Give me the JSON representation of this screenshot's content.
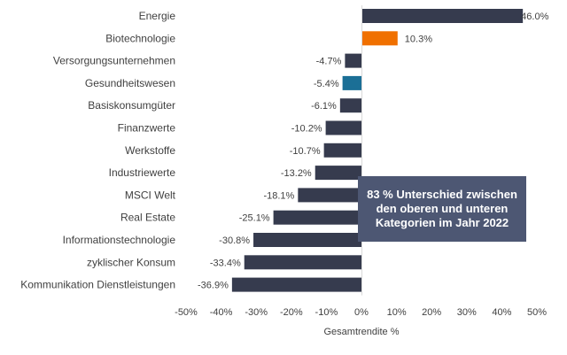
{
  "chart_data": {
    "type": "bar",
    "orientation": "horizontal",
    "title": "",
    "xlabel": "Gesamtrendite %",
    "ylabel": "",
    "xlim": [
      -50,
      50
    ],
    "grid": false,
    "categories": [
      "Energie",
      "Biotechnologie",
      "Versorgungsunternehmen",
      "Gesundheitswesen",
      "Basiskonsumgüter",
      "Finanzwerte",
      "Werkstoffe",
      "Industriewerte",
      "MSCI Welt",
      "Real Estate",
      "Informationstechnologie",
      "zyklischer Konsum",
      "Kommunikation Dienstleistungen"
    ],
    "values": [
      46.0,
      10.3,
      -4.7,
      -5.4,
      -6.1,
      -10.2,
      -10.7,
      -13.2,
      -18.1,
      -25.1,
      -30.8,
      -33.4,
      -36.9
    ],
    "value_labels": [
      "46.0%",
      "10.3%",
      "-4.7%",
      "-5.4%",
      "-6.1%",
      "-10.2%",
      "-10.7%",
      "-13.2%",
      "-18.1%",
      "-25.1%",
      "-30.8%",
      "-33.4%",
      "-36.9%"
    ],
    "bar_colors": [
      "#363b4e",
      "#f07000",
      "#363b4e",
      "#1b6f96",
      "#363b4e",
      "#363b4e",
      "#363b4e",
      "#363b4e",
      "#363b4e",
      "#363b4e",
      "#363b4e",
      "#363b4e",
      "#363b4e"
    ],
    "x_ticks": [
      -50,
      -40,
      -30,
      -20,
      -10,
      0,
      10,
      20,
      30,
      40,
      50
    ],
    "x_tick_labels": [
      "-50%",
      "-40%",
      "-30%",
      "-20%",
      "-10%",
      "0%",
      "10%",
      "20%",
      "30%",
      "40%",
      "50%"
    ],
    "annotation": "83 % Unterschied zwischen den oberen und unteren Kategorien im Jahr 2022"
  },
  "colors": {
    "default_bar": "#363b4e",
    "highlight_orange": "#f07000",
    "highlight_teal": "#1b6f96",
    "callout_bg": "#4d5773"
  }
}
